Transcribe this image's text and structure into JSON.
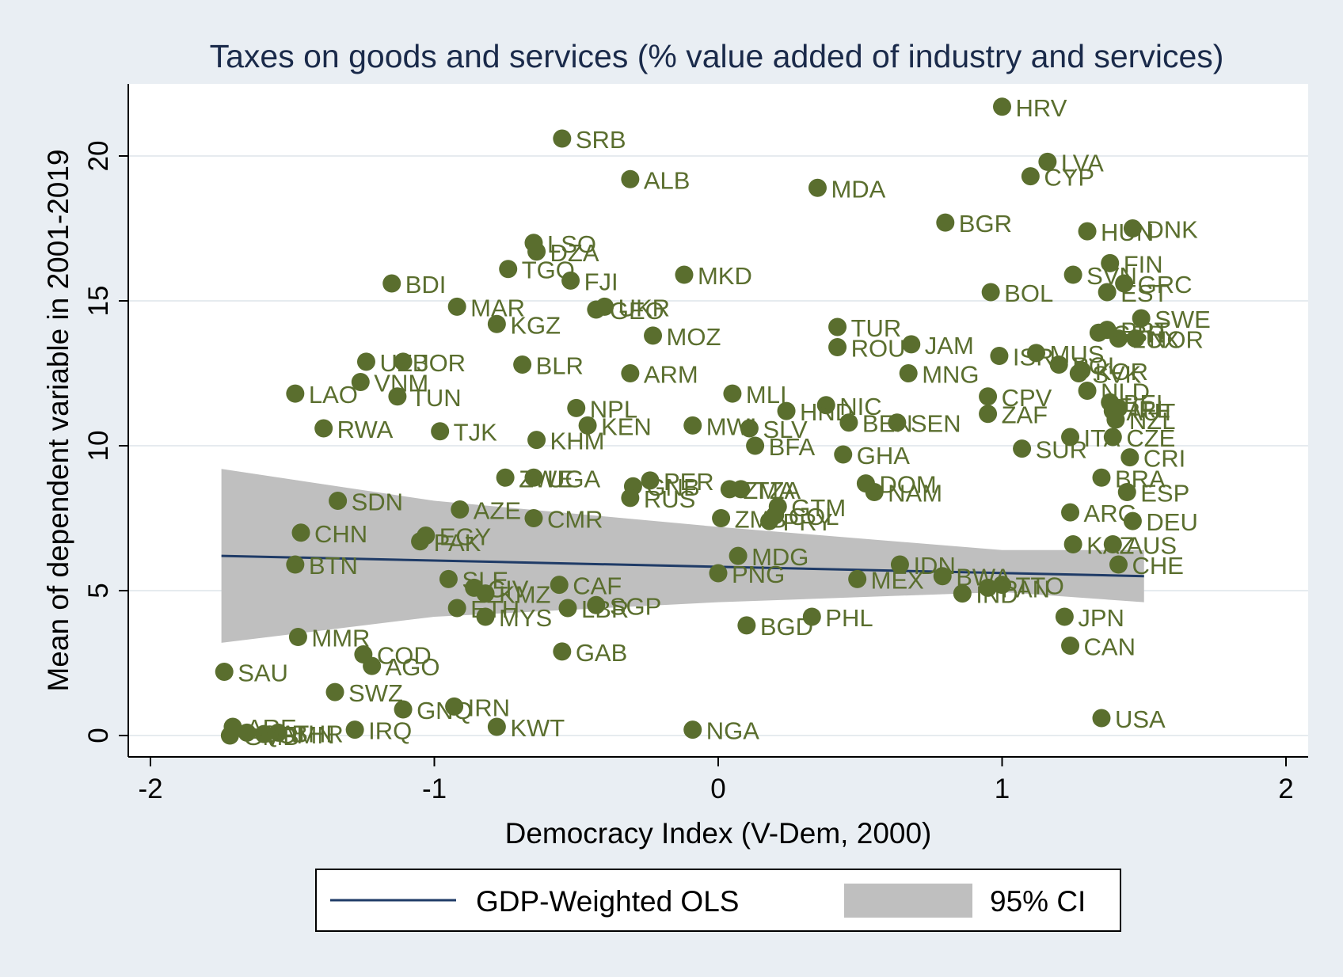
{
  "colors": {
    "background": "#e9eef3",
    "plot_background": "#ffffff",
    "point": "#5a6e2e",
    "label": "#5a6e2e",
    "line": "#1f3b67",
    "ci": "#bfbfbf",
    "grid": "#e6ebef",
    "title": "#1a2a4a"
  },
  "chart_data": {
    "type": "scatter",
    "title": "Taxes on goods and services (% value added of industry and services)",
    "xlabel": "Democracy Index (V-Dem, 2000)",
    "ylabel": "Mean of dependent variable in 2001-2019",
    "xlim": [
      -2.1,
      2.1
    ],
    "ylim": [
      -0.8,
      22.5
    ],
    "xticks": [
      -2,
      -1,
      0,
      1,
      2
    ],
    "yticks": [
      0,
      5,
      10,
      15,
      20
    ],
    "xtick_labels": [
      "-2",
      "-1",
      "0",
      "1",
      "2"
    ],
    "ytick_labels": [
      "0",
      "5",
      "10",
      "15",
      "20"
    ],
    "grid": "horizontal",
    "legend_position": "bottom",
    "legend": [
      {
        "name": "GDP-Weighted OLS",
        "kind": "line"
      },
      {
        "name": "95% CI",
        "kind": "area"
      }
    ],
    "fit_line": {
      "x": [
        -1.75,
        1.5
      ],
      "y": [
        6.2,
        5.5
      ]
    },
    "ci_band": {
      "x": [
        -1.75,
        -1.0,
        0.0,
        1.0,
        1.5
      ],
      "lower": [
        3.2,
        4.1,
        4.6,
        4.95,
        4.6
      ],
      "upper": [
        9.2,
        8.1,
        7.2,
        6.4,
        6.4
      ]
    },
    "points": [
      {
        "label": "HRV",
        "x": 1.0,
        "y": 21.7
      },
      {
        "label": "SRB",
        "x": -0.55,
        "y": 20.6
      },
      {
        "label": "LVA",
        "x": 1.16,
        "y": 19.8
      },
      {
        "label": "CYP",
        "x": 1.1,
        "y": 19.3
      },
      {
        "label": "ALB",
        "x": -0.31,
        "y": 19.2
      },
      {
        "label": "MDA",
        "x": 0.35,
        "y": 18.9
      },
      {
        "label": "BGR",
        "x": 0.8,
        "y": 17.7
      },
      {
        "label": "HUN",
        "x": 1.3,
        "y": 17.4
      },
      {
        "label": "DNK",
        "x": 1.46,
        "y": 17.5
      },
      {
        "label": "LSO",
        "x": -0.65,
        "y": 17.0
      },
      {
        "label": "DZA",
        "x": -0.64,
        "y": 16.7
      },
      {
        "label": "FIN",
        "x": 1.38,
        "y": 16.3
      },
      {
        "label": "TGO",
        "x": -0.74,
        "y": 16.1
      },
      {
        "label": "SVN",
        "x": 1.25,
        "y": 15.9
      },
      {
        "label": "MKD",
        "x": -0.12,
        "y": 15.9
      },
      {
        "label": "FJI",
        "x": -0.52,
        "y": 15.7
      },
      {
        "label": "GRC",
        "x": 1.43,
        "y": 15.6
      },
      {
        "label": "BDI",
        "x": -1.15,
        "y": 15.6
      },
      {
        "label": "EST",
        "x": 1.37,
        "y": 15.3
      },
      {
        "label": "BOL",
        "x": 0.96,
        "y": 15.3
      },
      {
        "label": "MAR",
        "x": -0.92,
        "y": 14.8
      },
      {
        "label": "UKR",
        "x": -0.4,
        "y": 14.8
      },
      {
        "label": "GEO",
        "x": -0.43,
        "y": 14.7
      },
      {
        "label": "SWE",
        "x": 1.49,
        "y": 14.4
      },
      {
        "label": "KGZ",
        "x": -0.78,
        "y": 14.2
      },
      {
        "label": "TUR",
        "x": 0.42,
        "y": 14.1
      },
      {
        "label": "PRT",
        "x": 1.37,
        "y": 14.0
      },
      {
        "label": "GBR",
        "x": 1.34,
        "y": 13.9
      },
      {
        "label": "NOR",
        "x": 1.47,
        "y": 13.7
      },
      {
        "label": "LUX",
        "x": 1.41,
        "y": 13.7
      },
      {
        "label": "MOZ",
        "x": -0.23,
        "y": 13.8
      },
      {
        "label": "JAM",
        "x": 0.68,
        "y": 13.5
      },
      {
        "label": "ROU",
        "x": 0.42,
        "y": 13.4
      },
      {
        "label": "ISR",
        "x": 0.99,
        "y": 13.1
      },
      {
        "label": "MUS",
        "x": 1.12,
        "y": 13.2
      },
      {
        "label": "POL",
        "x": 1.2,
        "y": 12.8
      },
      {
        "label": "UZB",
        "x": -1.24,
        "y": 12.9
      },
      {
        "label": "JOR",
        "x": -1.11,
        "y": 12.9
      },
      {
        "label": "KOR",
        "x": 1.28,
        "y": 12.6
      },
      {
        "label": "SVK",
        "x": 1.27,
        "y": 12.5
      },
      {
        "label": "BLR",
        "x": -0.69,
        "y": 12.8
      },
      {
        "label": "ARM",
        "x": -0.31,
        "y": 12.5
      },
      {
        "label": "MNG",
        "x": 0.67,
        "y": 12.5
      },
      {
        "label": "VNM",
        "x": -1.26,
        "y": 12.2
      },
      {
        "label": "NLD",
        "x": 1.3,
        "y": 11.9
      },
      {
        "label": "LAO",
        "x": -1.49,
        "y": 11.8
      },
      {
        "label": "MLI",
        "x": 0.05,
        "y": 11.8
      },
      {
        "label": "CPV",
        "x": 0.95,
        "y": 11.7
      },
      {
        "label": "TUN",
        "x": -1.13,
        "y": 11.7
      },
      {
        "label": "BEL",
        "x": 1.38,
        "y": 11.5
      },
      {
        "label": "IRL",
        "x": 1.41,
        "y": 11.3
      },
      {
        "label": "AUT",
        "x": 1.39,
        "y": 11.2
      },
      {
        "label": "NIC",
        "x": 0.38,
        "y": 11.4
      },
      {
        "label": "NPL",
        "x": -0.5,
        "y": 11.3
      },
      {
        "label": "HND",
        "x": 0.24,
        "y": 11.2
      },
      {
        "label": "ZAF",
        "x": 0.95,
        "y": 11.1
      },
      {
        "label": "NZL",
        "x": 1.4,
        "y": 10.9
      },
      {
        "label": "BEN",
        "x": 0.46,
        "y": 10.8
      },
      {
        "label": "SEN",
        "x": 0.63,
        "y": 10.8
      },
      {
        "label": "KEN",
        "x": -0.46,
        "y": 10.7
      },
      {
        "label": "MWI",
        "x": -0.09,
        "y": 10.7
      },
      {
        "label": "RWA",
        "x": -1.39,
        "y": 10.6
      },
      {
        "label": "SLV",
        "x": 0.11,
        "y": 10.6
      },
      {
        "label": "TJK",
        "x": -0.98,
        "y": 10.5
      },
      {
        "label": "CZE",
        "x": 1.39,
        "y": 10.3
      },
      {
        "label": "ITA",
        "x": 1.24,
        "y": 10.3
      },
      {
        "label": "KHM",
        "x": -0.64,
        "y": 10.2
      },
      {
        "label": "BFA",
        "x": 0.13,
        "y": 10.0
      },
      {
        "label": "SUR",
        "x": 1.07,
        "y": 9.9
      },
      {
        "label": "GHA",
        "x": 0.44,
        "y": 9.7
      },
      {
        "label": "CRI",
        "x": 1.45,
        "y": 9.6
      },
      {
        "label": "ZWE",
        "x": -0.75,
        "y": 8.9
      },
      {
        "label": "UGA",
        "x": -0.65,
        "y": 8.9
      },
      {
        "label": "BRA",
        "x": 1.35,
        "y": 8.9
      },
      {
        "label": "PER",
        "x": -0.24,
        "y": 8.8
      },
      {
        "label": "DOM",
        "x": 0.52,
        "y": 8.7
      },
      {
        "label": "GNB",
        "x": -0.3,
        "y": 8.6
      },
      {
        "label": "TZA",
        "x": 0.08,
        "y": 8.5
      },
      {
        "label": "ZMA",
        "x": 0.04,
        "y": 8.5
      },
      {
        "label": "NAM",
        "x": 0.55,
        "y": 8.4
      },
      {
        "label": "ESP",
        "x": 1.44,
        "y": 8.4
      },
      {
        "label": "RUS",
        "x": -0.31,
        "y": 8.2
      },
      {
        "label": "SDN",
        "x": -1.34,
        "y": 8.1
      },
      {
        "label": "GTM",
        "x": 0.21,
        "y": 7.9
      },
      {
        "label": "AZE",
        "x": -0.91,
        "y": 7.8
      },
      {
        "label": "ARG",
        "x": 1.24,
        "y": 7.7
      },
      {
        "label": "COL",
        "x": 0.2,
        "y": 7.6
      },
      {
        "label": "ZMB",
        "x": 0.01,
        "y": 7.5
      },
      {
        "label": "CMR",
        "x": -0.65,
        "y": 7.5
      },
      {
        "label": "PRY",
        "x": 0.18,
        "y": 7.4
      },
      {
        "label": "DEU",
        "x": 1.46,
        "y": 7.4
      },
      {
        "label": "CHN",
        "x": -1.47,
        "y": 7.0
      },
      {
        "label": "EGY",
        "x": -1.03,
        "y": 6.9
      },
      {
        "label": "PAK",
        "x": -1.05,
        "y": 6.7
      },
      {
        "label": "KAZ",
        "x": 1.25,
        "y": 6.6
      },
      {
        "label": "AUS",
        "x": 1.39,
        "y": 6.6
      },
      {
        "label": "MDG",
        "x": 0.07,
        "y": 6.2
      },
      {
        "label": "CHE",
        "x": 1.41,
        "y": 5.9
      },
      {
        "label": "BTN",
        "x": -1.49,
        "y": 5.9
      },
      {
        "label": "IDN",
        "x": 0.64,
        "y": 5.9
      },
      {
        "label": "PNG",
        "x": 0.0,
        "y": 5.6
      },
      {
        "label": "SLE",
        "x": -0.95,
        "y": 5.4
      },
      {
        "label": "MEX",
        "x": 0.49,
        "y": 5.4
      },
      {
        "label": "BWA",
        "x": 0.79,
        "y": 5.5
      },
      {
        "label": "CAF",
        "x": -0.56,
        "y": 5.2
      },
      {
        "label": "CIV",
        "x": -0.86,
        "y": 5.1
      },
      {
        "label": "TTO",
        "x": 1.0,
        "y": 5.2
      },
      {
        "label": "PAN",
        "x": 0.95,
        "y": 5.1
      },
      {
        "label": "KMZ",
        "x": -0.82,
        "y": 4.9
      },
      {
        "label": "IND",
        "x": 0.86,
        "y": 4.9
      },
      {
        "label": "LBR",
        "x": -0.53,
        "y": 4.4
      },
      {
        "label": "SGP",
        "x": -0.43,
        "y": 4.5
      },
      {
        "label": "ETH",
        "x": -0.92,
        "y": 4.4
      },
      {
        "label": "MYS",
        "x": -0.82,
        "y": 4.1
      },
      {
        "label": "PHL",
        "x": 0.33,
        "y": 4.1
      },
      {
        "label": "JPN",
        "x": 1.22,
        "y": 4.1
      },
      {
        "label": "BGD",
        "x": 0.1,
        "y": 3.8
      },
      {
        "label": "MMR",
        "x": -1.48,
        "y": 3.4
      },
      {
        "label": "CAN",
        "x": 1.24,
        "y": 3.1
      },
      {
        "label": "GAB",
        "x": -0.55,
        "y": 2.9
      },
      {
        "label": "COD",
        "x": -1.25,
        "y": 2.8
      },
      {
        "label": "AGO",
        "x": -1.22,
        "y": 2.4
      },
      {
        "label": "SAU",
        "x": -1.74,
        "y": 2.2
      },
      {
        "label": "SWZ",
        "x": -1.35,
        "y": 1.5
      },
      {
        "label": "IRN",
        "x": -0.93,
        "y": 1.0
      },
      {
        "label": "GNQ",
        "x": -1.11,
        "y": 0.9
      },
      {
        "label": "USA",
        "x": 1.35,
        "y": 0.6
      },
      {
        "label": "ARE",
        "x": -1.71,
        "y": 0.3
      },
      {
        "label": "KWT",
        "x": -0.78,
        "y": 0.3
      },
      {
        "label": "NGA",
        "x": -0.09,
        "y": 0.2
      },
      {
        "label": "IRQ",
        "x": -1.28,
        "y": 0.2
      },
      {
        "label": "QAT",
        "x": -1.66,
        "y": 0.1
      },
      {
        "label": "BHR",
        "x": -1.55,
        "y": 0.1
      },
      {
        "label": "OMN",
        "x": -1.6,
        "y": 0.05
      },
      {
        "label": "GMB",
        "x": -1.72,
        "y": 0.0
      }
    ]
  }
}
